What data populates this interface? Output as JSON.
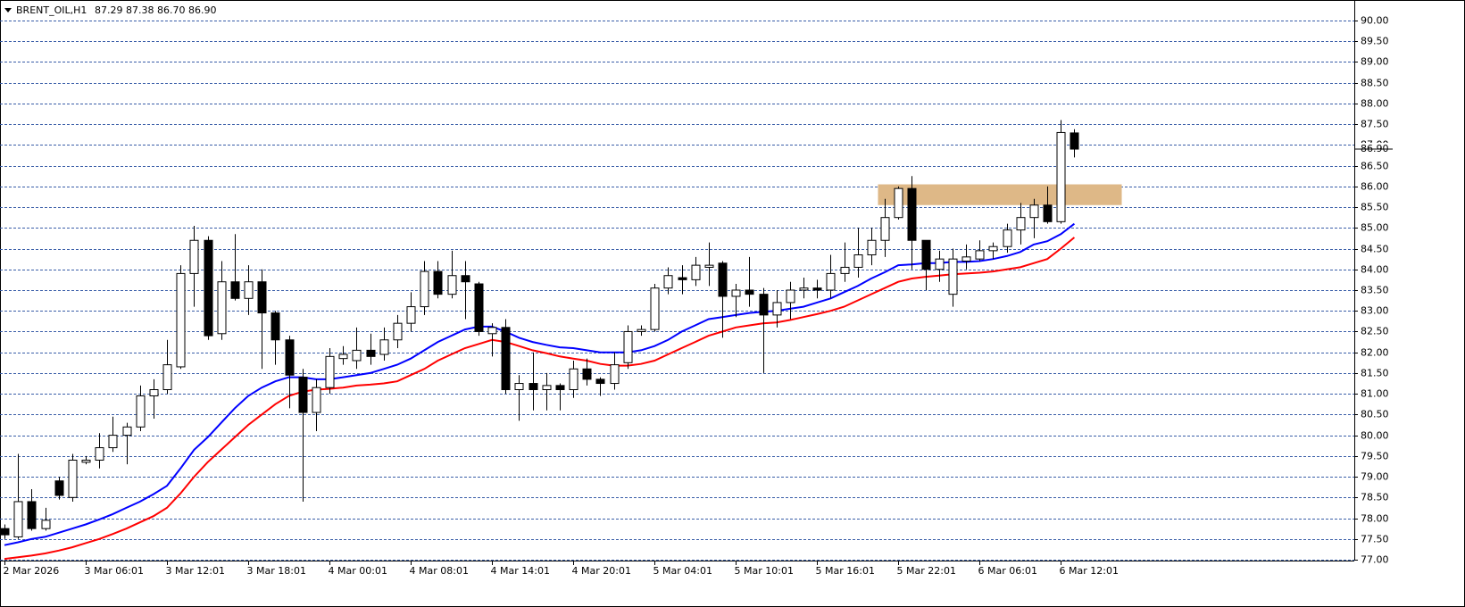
{
  "chart_data": {
    "type": "candlestick",
    "symbol": "BRENT_OIL,H1",
    "ohlc_text": "87.29 87.38 86.70 86.90",
    "categories": [
      "2 Mar 2026",
      null,
      null,
      null,
      null,
      null,
      "3 Mar 06:01",
      null,
      null,
      null,
      null,
      null,
      "3 Mar 12:01",
      null,
      null,
      null,
      null,
      null,
      "3 Mar 18:01",
      null,
      null,
      null,
      null,
      null,
      "4 Mar 00:01",
      null,
      null,
      null,
      null,
      null,
      "4 Mar 08:01",
      null,
      null,
      null,
      null,
      null,
      "4 Mar 14:01",
      null,
      null,
      null,
      null,
      null,
      "4 Mar 20:01",
      null,
      null,
      null,
      null,
      null,
      "5 Mar 04:01",
      null,
      null,
      null,
      null,
      null,
      "5 Mar 10:01",
      null,
      null,
      null,
      null,
      null,
      "5 Mar 16:01",
      null,
      null,
      null,
      null,
      null,
      "5 Mar 22:01",
      null,
      null,
      null,
      null,
      null,
      "6 Mar 06:01",
      null,
      null,
      null,
      null,
      null,
      "6 Mar 12:01",
      null
    ],
    "open": [
      77.75,
      77.55,
      78.4,
      77.75,
      78.9,
      78.5,
      79.35,
      79.4,
      79.7,
      80.0,
      80.2,
      80.95,
      81.1,
      81.65,
      83.9,
      84.7,
      82.45,
      83.7,
      83.3,
      83.7,
      82.95,
      82.3,
      81.4,
      80.55,
      81.15,
      81.85,
      81.8,
      82.05,
      81.95,
      82.3,
      82.7,
      83.1,
      83.95,
      83.4,
      83.85,
      83.65,
      82.45,
      82.6,
      81.1,
      81.25,
      81.1,
      81.2,
      81.1,
      81.6,
      81.35,
      81.25,
      81.75,
      82.5,
      82.55,
      83.55,
      83.8,
      83.75,
      84.05,
      84.15,
      83.35,
      83.5,
      83.4,
      82.9,
      83.2,
      83.5,
      83.55,
      83.5,
      83.9,
      84.05,
      84.35,
      84.7,
      85.25,
      85.95,
      84.7,
      84.0,
      83.4,
      84.2,
      84.25,
      84.45,
      84.55,
      84.95,
      85.25,
      85.55,
      85.15,
      87.29
    ],
    "high": [
      77.85,
      79.55,
      78.7,
      78.25,
      79.0,
      79.55,
      79.5,
      80.05,
      80.45,
      80.3,
      81.2,
      81.35,
      82.3,
      84.1,
      85.05,
      84.8,
      84.2,
      84.85,
      84.1,
      84.0,
      83.0,
      82.4,
      81.6,
      81.35,
      82.1,
      82.15,
      82.6,
      82.45,
      82.6,
      82.9,
      83.45,
      84.2,
      84.2,
      84.45,
      84.2,
      83.7,
      82.7,
      82.8,
      81.45,
      82.0,
      81.5,
      81.25,
      81.8,
      81.85,
      81.4,
      82.0,
      82.65,
      82.65,
      83.65,
      84.05,
      84.1,
      84.3,
      84.65,
      84.2,
      83.65,
      84.3,
      83.55,
      83.5,
      83.7,
      83.8,
      83.75,
      84.35,
      84.65,
      85.0,
      85.0,
      85.7,
      86.0,
      86.25,
      84.7,
      84.45,
      84.5,
      84.6,
      84.7,
      84.65,
      85.1,
      85.6,
      85.7,
      86.0,
      87.6,
      87.38
    ],
    "low": [
      77.5,
      77.5,
      77.7,
      77.7,
      78.45,
      78.4,
      79.3,
      79.2,
      79.6,
      79.3,
      80.1,
      80.4,
      81.0,
      81.6,
      83.1,
      82.3,
      82.3,
      83.25,
      82.9,
      81.6,
      81.7,
      80.65,
      78.4,
      80.1,
      81.0,
      81.7,
      81.6,
      81.7,
      81.8,
      82.1,
      82.5,
      82.9,
      83.3,
      83.3,
      82.8,
      82.4,
      81.9,
      81.0,
      80.35,
      80.6,
      80.6,
      80.6,
      80.9,
      81.2,
      80.95,
      81.1,
      81.6,
      82.4,
      82.5,
      83.4,
      83.4,
      83.6,
      83.6,
      82.35,
      82.85,
      83.1,
      81.5,
      82.6,
      82.8,
      83.3,
      83.3,
      83.3,
      83.7,
      83.8,
      84.1,
      84.3,
      85.2,
      84.0,
      83.5,
      83.7,
      83.1,
      84.0,
      84.2,
      84.25,
      84.4,
      84.6,
      84.75,
      85.1,
      85.1,
      86.7
    ],
    "close": [
      77.6,
      78.4,
      77.75,
      77.95,
      78.55,
      79.4,
      79.4,
      79.7,
      80.0,
      80.2,
      80.95,
      81.1,
      81.7,
      83.9,
      84.7,
      82.4,
      83.7,
      83.3,
      83.7,
      82.95,
      82.3,
      81.45,
      80.55,
      81.15,
      81.9,
      81.95,
      82.05,
      81.9,
      82.3,
      82.7,
      83.1,
      83.95,
      83.4,
      83.85,
      83.7,
      82.5,
      82.6,
      81.1,
      81.25,
      81.1,
      81.2,
      81.1,
      81.6,
      81.35,
      81.25,
      81.7,
      82.5,
      82.55,
      83.55,
      83.85,
      83.75,
      84.1,
      84.1,
      83.35,
      83.5,
      83.4,
      82.9,
      83.2,
      83.5,
      83.55,
      83.5,
      83.9,
      84.05,
      84.35,
      84.7,
      85.25,
      85.95,
      84.7,
      84.0,
      84.25,
      84.25,
      84.3,
      84.45,
      84.55,
      84.95,
      85.25,
      85.55,
      85.15,
      87.3,
      86.9
    ],
    "up_color": "#ffffff",
    "down_color": "#000000",
    "series": [
      {
        "color": "#0000ff",
        "values": [
          77.35,
          77.42,
          77.5,
          77.55,
          77.65,
          77.75,
          77.85,
          77.97,
          78.1,
          78.25,
          78.4,
          78.58,
          78.78,
          79.2,
          79.65,
          79.95,
          80.3,
          80.65,
          80.95,
          81.15,
          81.3,
          81.4,
          81.4,
          81.35,
          81.35,
          81.4,
          81.45,
          81.5,
          81.6,
          81.7,
          81.85,
          82.05,
          82.25,
          82.4,
          82.55,
          82.62,
          82.62,
          82.5,
          82.35,
          82.25,
          82.18,
          82.12,
          82.1,
          82.05,
          82.0,
          82.0,
          82.0,
          82.05,
          82.15,
          82.3,
          82.5,
          82.65,
          82.8,
          82.85,
          82.9,
          82.95,
          82.98,
          83.0,
          83.05,
          83.1,
          83.2,
          83.3,
          83.45,
          83.6,
          83.78,
          83.93,
          84.1,
          84.12,
          84.15,
          84.15,
          84.18,
          84.18,
          84.2,
          84.25,
          84.32,
          84.42,
          84.6,
          84.68,
          84.85,
          85.1
        ]
      },
      {
        "color": "#ff0000",
        "values": [
          77.02,
          77.06,
          77.1,
          77.15,
          77.22,
          77.3,
          77.4,
          77.5,
          77.62,
          77.75,
          77.9,
          78.05,
          78.25,
          78.6,
          79.0,
          79.35,
          79.65,
          79.95,
          80.25,
          80.5,
          80.75,
          80.95,
          81.05,
          81.1,
          81.12,
          81.15,
          81.2,
          81.22,
          81.25,
          81.3,
          81.45,
          81.6,
          81.8,
          81.95,
          82.1,
          82.2,
          82.3,
          82.25,
          82.15,
          82.05,
          81.98,
          81.9,
          81.85,
          81.8,
          81.72,
          81.68,
          81.68,
          81.72,
          81.8,
          81.95,
          82.1,
          82.25,
          82.4,
          82.5,
          82.6,
          82.65,
          82.7,
          82.72,
          82.78,
          82.85,
          82.92,
          83.0,
          83.1,
          83.25,
          83.4,
          83.55,
          83.7,
          83.78,
          83.82,
          83.85,
          83.88,
          83.9,
          83.92,
          83.95,
          84.0,
          84.05,
          84.15,
          84.25,
          84.5,
          84.77
        ]
      }
    ],
    "zone": {
      "from": 85.55,
      "to": 86.05,
      "start": 65,
      "end": 83,
      "color": "#deb887"
    },
    "current_price": {
      "value": 86.9,
      "label": "86.90"
    },
    "ylim": [
      77,
      90
    ],
    "yticks": [
      {
        "value": 77,
        "label": "77.00"
      },
      {
        "value": 77.5,
        "label": "77.50"
      },
      {
        "value": 78,
        "label": "78.00"
      },
      {
        "value": 78.5,
        "label": "78.50"
      },
      {
        "value": 79,
        "label": "79.00"
      },
      {
        "value": 79.5,
        "label": "79.50"
      },
      {
        "value": 80,
        "label": "80.00"
      },
      {
        "value": 80.5,
        "label": "80.50"
      },
      {
        "value": 81,
        "label": "81.00"
      },
      {
        "value": 81.5,
        "label": "81.50"
      },
      {
        "value": 82,
        "label": "82.00"
      },
      {
        "value": 82.5,
        "label": "82.50"
      },
      {
        "value": 83,
        "label": "83.00"
      },
      {
        "value": 83.5,
        "label": "83.50"
      },
      {
        "value": 84,
        "label": "84.00"
      },
      {
        "value": 84.5,
        "label": "84.50"
      },
      {
        "value": 85,
        "label": "85.00"
      },
      {
        "value": 85.5,
        "label": "85.50"
      },
      {
        "value": 86,
        "label": "86.00"
      },
      {
        "value": 86.5,
        "label": "86.50"
      },
      {
        "value": 87,
        "label": "87.00"
      },
      {
        "value": 87.5,
        "label": "87.50"
      },
      {
        "value": 88,
        "label": "88.00"
      },
      {
        "value": 88.5,
        "label": "88.50"
      },
      {
        "value": 89,
        "label": "89.00"
      },
      {
        "value": 89.5,
        "label": "89.50"
      },
      {
        "value": 90,
        "label": "90.00"
      }
    ],
    "grid": true
  }
}
